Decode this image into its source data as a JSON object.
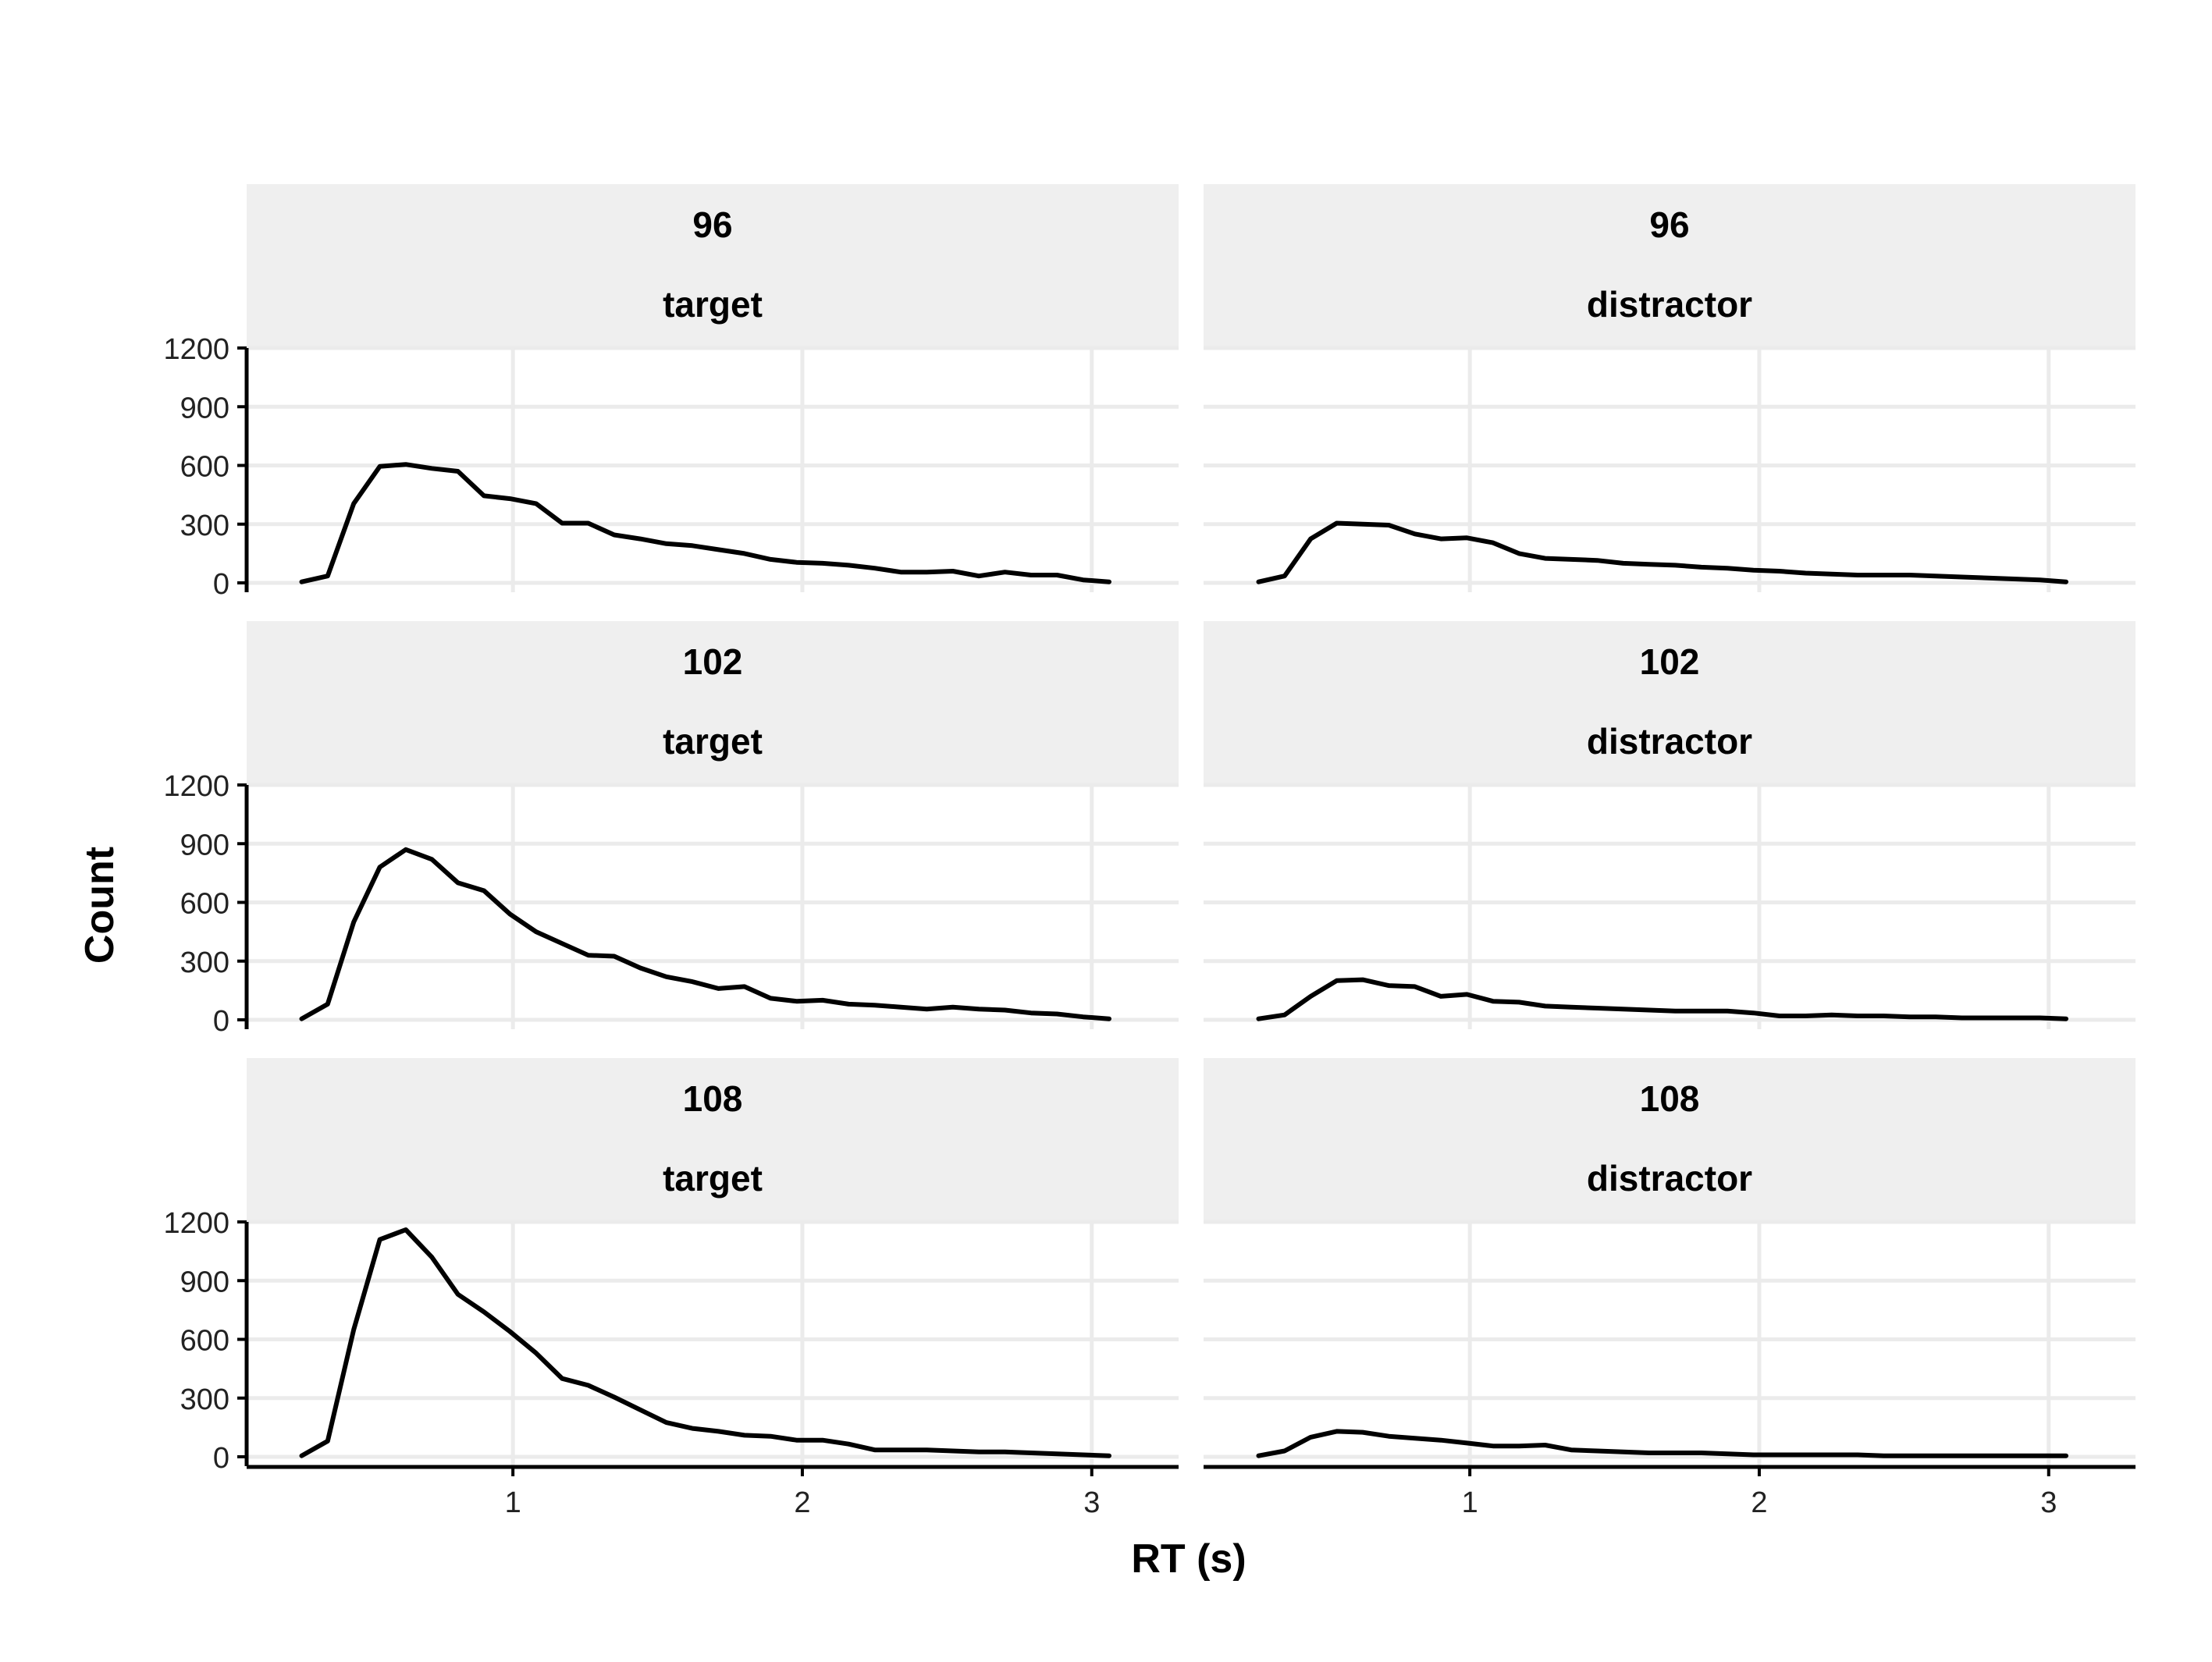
{
  "chart_data": {
    "type": "line",
    "xlabel": "RT (s)",
    "ylabel": "Count",
    "xlim": [
      0.08,
      3.3
    ],
    "ylim": [
      -50,
      1200
    ],
    "x_ticks": [
      1,
      2,
      3
    ],
    "y_ticks": [
      0,
      300,
      600,
      900,
      1200
    ],
    "grid": true,
    "legend": "none",
    "x": [
      0.27,
      0.36,
      0.45,
      0.54,
      0.63,
      0.72,
      0.81,
      0.9,
      0.99,
      1.08,
      1.17,
      1.26,
      1.35,
      1.44,
      1.53,
      1.62,
      1.71,
      1.8,
      1.89,
      1.98,
      2.07,
      2.16,
      2.25,
      2.34,
      2.43,
      2.52,
      2.61,
      2.7,
      2.79,
      2.88,
      2.97,
      3.06
    ],
    "panels": [
      {
        "strip_top": "96",
        "strip_bottom": "target",
        "values": [
          5,
          35,
          405,
          595,
          605,
          585,
          570,
          445,
          430,
          405,
          305,
          305,
          245,
          225,
          200,
          190,
          170,
          150,
          120,
          105,
          100,
          90,
          75,
          55,
          55,
          60,
          35,
          55,
          40,
          40,
          15,
          5
        ]
      },
      {
        "strip_top": "96",
        "strip_bottom": "distractor",
        "values": [
          5,
          35,
          225,
          305,
          300,
          295,
          250,
          225,
          230,
          205,
          150,
          125,
          120,
          115,
          100,
          95,
          90,
          80,
          75,
          65,
          60,
          50,
          45,
          40,
          40,
          40,
          35,
          30,
          25,
          20,
          15,
          5
        ]
      },
      {
        "strip_top": "102",
        "strip_bottom": "target",
        "values": [
          5,
          80,
          500,
          780,
          870,
          820,
          700,
          660,
          540,
          450,
          390,
          330,
          325,
          265,
          220,
          195,
          160,
          170,
          110,
          95,
          100,
          80,
          75,
          65,
          55,
          65,
          55,
          50,
          35,
          30,
          15,
          5
        ]
      },
      {
        "strip_top": "102",
        "strip_bottom": "distractor",
        "values": [
          5,
          25,
          120,
          200,
          205,
          175,
          170,
          120,
          130,
          95,
          90,
          70,
          65,
          60,
          55,
          50,
          45,
          45,
          45,
          35,
          20,
          20,
          25,
          20,
          20,
          15,
          15,
          10,
          10,
          10,
          10,
          5
        ]
      },
      {
        "strip_top": "108",
        "strip_bottom": "target",
        "values": [
          5,
          80,
          650,
          1110,
          1160,
          1020,
          830,
          740,
          640,
          530,
          400,
          365,
          305,
          240,
          175,
          145,
          130,
          110,
          105,
          85,
          85,
          65,
          35,
          35,
          35,
          30,
          25,
          25,
          20,
          15,
          10,
          5
        ]
      },
      {
        "strip_top": "108",
        "strip_bottom": "distractor",
        "values": [
          5,
          30,
          100,
          130,
          125,
          105,
          95,
          85,
          70,
          55,
          55,
          60,
          35,
          30,
          25,
          20,
          20,
          20,
          15,
          10,
          10,
          10,
          10,
          10,
          5,
          5,
          5,
          5,
          5,
          5,
          5,
          5
        ]
      }
    ]
  }
}
